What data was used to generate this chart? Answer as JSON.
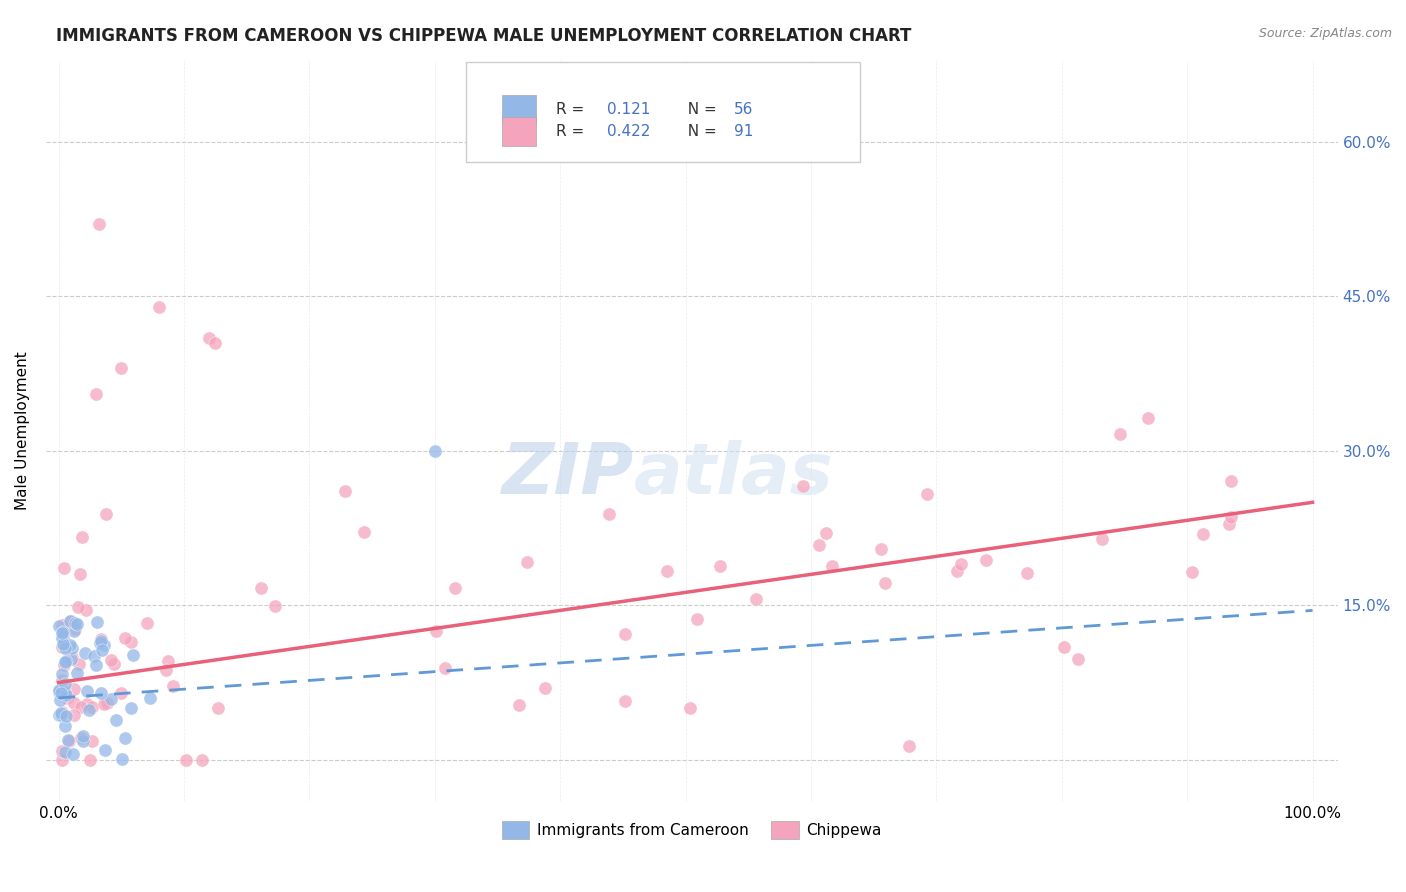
{
  "title": "IMMIGRANTS FROM CAMEROON VS CHIPPEWA MALE UNEMPLOYMENT CORRELATION CHART",
  "source": "Source: ZipAtlas.com",
  "ylabel": "Male Unemployment",
  "legend_label1": "Immigrants from Cameroon",
  "legend_label2": "Chippewa",
  "r1": "0.121",
  "n1": "56",
  "r2": "0.422",
  "n2": "91",
  "color1": "#93b8e8",
  "color2": "#f4a4bc",
  "trendline1_color": "#6199d8",
  "trendline2_color": "#e8607a",
  "background_color": "#ffffff",
  "grid_color": "#cccccc",
  "watermark_zip": "ZIP",
  "watermark_atlas": "atlas",
  "text_blue": "#4472c4",
  "title_fontsize": 12,
  "axis_label_fontsize": 11,
  "tick_label_fontsize": 11
}
